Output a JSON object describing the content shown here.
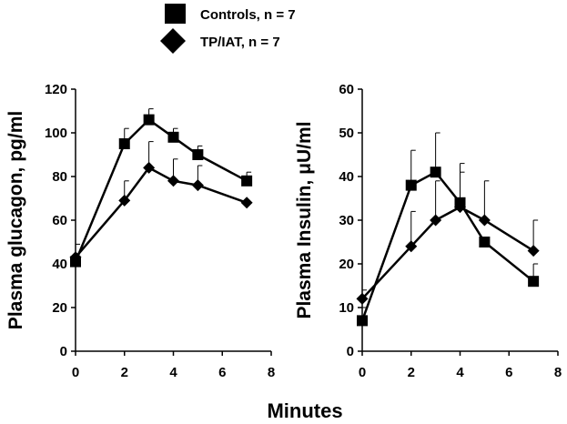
{
  "legend": [
    {
      "label": "Controls, n = 7",
      "marker": "square"
    },
    {
      "label": "TP/IAT, n = 7",
      "marker": "diamond"
    }
  ],
  "xlabel": "Minutes",
  "chart_data": [
    {
      "type": "line",
      "ylabel": "Plasma glucagon, pg/ml",
      "xlim": [
        0,
        8
      ],
      "ylim": [
        0,
        120
      ],
      "x_ticks": [
        0,
        2,
        4,
        6,
        8
      ],
      "y_ticks": [
        0,
        20,
        40,
        60,
        80,
        100,
        120
      ],
      "grid": false,
      "series": [
        {
          "name": "Controls, n = 7",
          "marker": "square",
          "x": [
            0,
            2,
            3,
            4,
            5,
            7
          ],
          "y": [
            41,
            95,
            106,
            98,
            90,
            78
          ],
          "err": [
            2,
            7,
            5,
            4,
            4,
            4
          ]
        },
        {
          "name": "TP/IAT, n = 7",
          "marker": "diamond",
          "x": [
            0,
            2,
            3,
            4,
            5,
            7
          ],
          "y": [
            43,
            69,
            84,
            78,
            76,
            68
          ],
          "err": [
            6,
            9,
            12,
            10,
            9,
            0
          ]
        }
      ]
    },
    {
      "type": "line",
      "ylabel": "Plasma Insulin, μU/ml",
      "xlim": [
        0,
        8
      ],
      "ylim": [
        0,
        60
      ],
      "x_ticks": [
        0,
        2,
        4,
        6,
        8
      ],
      "y_ticks": [
        0,
        10,
        20,
        30,
        40,
        50,
        60
      ],
      "grid": false,
      "series": [
        {
          "name": "Controls, n = 7",
          "marker": "square",
          "x": [
            0,
            2,
            3,
            4,
            5,
            7
          ],
          "y": [
            7,
            38,
            41,
            34,
            25,
            16
          ],
          "err": [
            3,
            8,
            9,
            9,
            0,
            4
          ]
        },
        {
          "name": "TP/IAT, n = 7",
          "marker": "diamond",
          "x": [
            0,
            2,
            3,
            4,
            5,
            7
          ],
          "y": [
            12,
            24,
            30,
            33,
            30,
            23
          ],
          "err": [
            2,
            8,
            9,
            8,
            9,
            7
          ]
        }
      ]
    }
  ]
}
